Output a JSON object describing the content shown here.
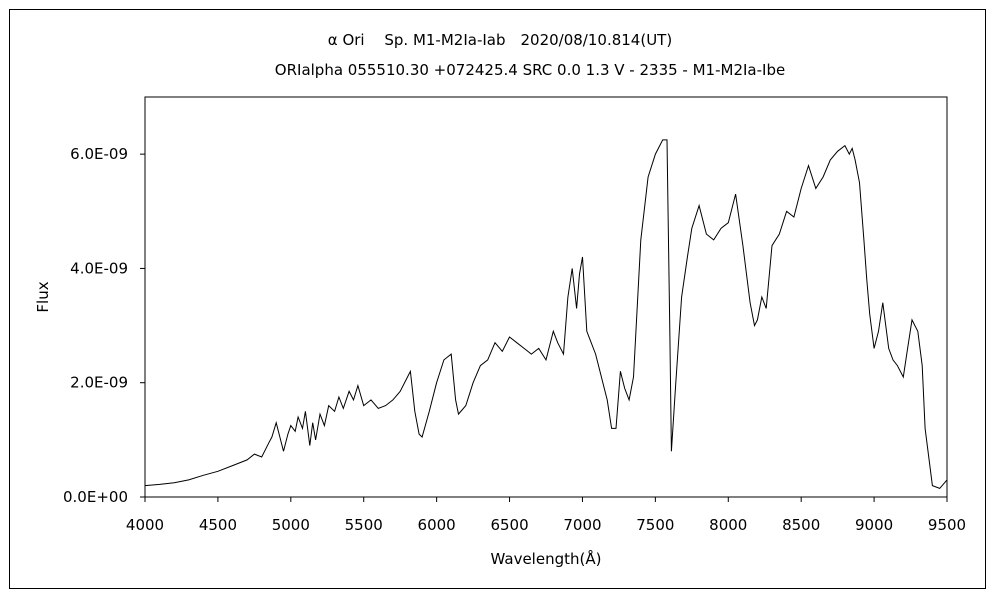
{
  "chart_data": {
    "type": "line",
    "title": "α Ori　 Sp. M1-M2Ia-Iab　2020/08/10.814(UT)",
    "subtitle": "ORIalpha 055510.30 +072425.4 SRC 0.0 1.3 V - 2335 - M1-M2Ia-Ibe",
    "xlabel": "Wavelength(Å)",
    "ylabel": "Flux",
    "xlim": [
      4000,
      9500
    ],
    "ylim": [
      0,
      7e-09
    ],
    "xticks": [
      "4000",
      "4500",
      "5000",
      "5500",
      "6000",
      "6500",
      "7000",
      "7500",
      "8000",
      "8500",
      "9000",
      "9500"
    ],
    "yticks": [
      "0.0E+00",
      "2.0E-09",
      "4.0E-09",
      "6.0E-09"
    ],
    "grid": false,
    "series": [
      {
        "x": [
          4000,
          4100,
          4200,
          4300,
          4400,
          4500,
          4600,
          4700,
          4750,
          4800,
          4850,
          4870,
          4900,
          4950,
          4980,
          5000,
          5030,
          5050,
          5080,
          5100,
          5130,
          5150,
          5170,
          5200,
          5230,
          5260,
          5300,
          5330,
          5360,
          5400,
          5430,
          5460,
          5500,
          5550,
          5600,
          5650,
          5700,
          5750,
          5800,
          5820,
          5850,
          5880,
          5900,
          5950,
          6000,
          6050,
          6100,
          6130,
          6150,
          6200,
          6250,
          6300,
          6350,
          6400,
          6450,
          6500,
          6550,
          6600,
          6650,
          6700,
          6750,
          6800,
          6830,
          6870,
          6900,
          6930,
          6960,
          6980,
          7000,
          7030,
          7060,
          7090,
          7130,
          7170,
          7200,
          7230,
          7260,
          7290,
          7320,
          7350,
          7400,
          7450,
          7500,
          7550,
          7580,
          7600,
          7610,
          7640,
          7680,
          7720,
          7750,
          7800,
          7850,
          7900,
          7950,
          8000,
          8050,
          8100,
          8150,
          8180,
          8200,
          8230,
          8260,
          8300,
          8350,
          8400,
          8450,
          8500,
          8550,
          8600,
          8650,
          8700,
          8750,
          8800,
          8830,
          8850,
          8870,
          8900,
          8930,
          8950,
          8970,
          9000,
          9030,
          9060,
          9100,
          9130,
          9160,
          9200,
          9230,
          9260,
          9300,
          9330,
          9350,
          9400,
          9450,
          9500
        ],
        "y": [
          2e-10,
          2.2e-10,
          2.5e-10,
          3e-10,
          3.8e-10,
          4.5e-10,
          5.5e-10,
          6.5e-10,
          7.5e-10,
          7e-10,
          9.5e-10,
          1.05e-09,
          1.3e-09,
          8e-10,
          1.1e-09,
          1.25e-09,
          1.15e-09,
          1.4e-09,
          1.2e-09,
          1.5e-09,
          9e-10,
          1.3e-09,
          1e-09,
          1.45e-09,
          1.25e-09,
          1.6e-09,
          1.5e-09,
          1.75e-09,
          1.55e-09,
          1.85e-09,
          1.7e-09,
          1.95e-09,
          1.6e-09,
          1.7e-09,
          1.55e-09,
          1.6e-09,
          1.7e-09,
          1.85e-09,
          2.1e-09,
          2.2e-09,
          1.5e-09,
          1.1e-09,
          1.05e-09,
          1.5e-09,
          2e-09,
          2.4e-09,
          2.5e-09,
          1.7e-09,
          1.45e-09,
          1.6e-09,
          2e-09,
          2.3e-09,
          2.4e-09,
          2.7e-09,
          2.55e-09,
          2.8e-09,
          2.7e-09,
          2.6e-09,
          2.5e-09,
          2.6e-09,
          2.4e-09,
          2.9e-09,
          2.7e-09,
          2.5e-09,
          3.5e-09,
          4e-09,
          3.3e-09,
          3.9e-09,
          4.2e-09,
          2.9e-09,
          2.7e-09,
          2.5e-09,
          2.1e-09,
          1.7e-09,
          1.2e-09,
          1.2e-09,
          2.2e-09,
          1.9e-09,
          1.7e-09,
          2.1e-09,
          4.5e-09,
          5.6e-09,
          6e-09,
          6.25e-09,
          6.25e-09,
          2.8e-09,
          8e-10,
          2e-09,
          3.5e-09,
          4.2e-09,
          4.7e-09,
          5.1e-09,
          4.6e-09,
          4.5e-09,
          4.7e-09,
          4.8e-09,
          5.3e-09,
          4.4e-09,
          3.4e-09,
          3e-09,
          3.1e-09,
          3.5e-09,
          3.3e-09,
          4.4e-09,
          4.6e-09,
          5e-09,
          4.9e-09,
          5.4e-09,
          5.8e-09,
          5.4e-09,
          5.6e-09,
          5.9e-09,
          6.05e-09,
          6.15e-09,
          6e-09,
          6.1e-09,
          5.9e-09,
          5.5e-09,
          4.5e-09,
          3.8e-09,
          3.2e-09,
          2.6e-09,
          2.9e-09,
          3.4e-09,
          2.6e-09,
          2.4e-09,
          2.3e-09,
          2.1e-09,
          2.6e-09,
          3.1e-09,
          2.9e-09,
          2.3e-09,
          1.2e-09,
          2e-10,
          1.5e-10,
          3e-10
        ]
      }
    ]
  }
}
